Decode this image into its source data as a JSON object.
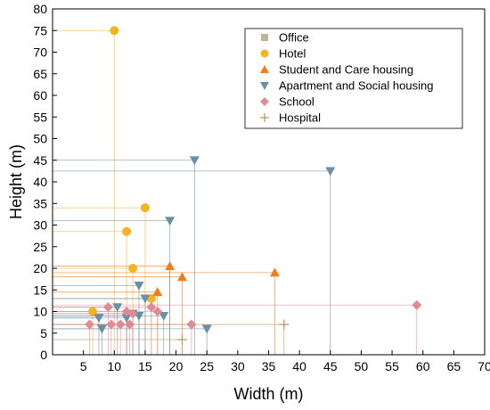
{
  "chart_data": {
    "type": "scatter",
    "title": "",
    "xlabel": "Width (m)",
    "ylabel": "Height (m)",
    "xlim": [
      0,
      70
    ],
    "ylim": [
      0,
      80
    ],
    "xticks": [
      5,
      10,
      15,
      20,
      25,
      30,
      35,
      40,
      45,
      50,
      55,
      60,
      65,
      70
    ],
    "yticks": [
      0,
      5,
      10,
      15,
      20,
      25,
      30,
      35,
      40,
      45,
      50,
      55,
      60,
      65,
      70,
      75,
      80
    ],
    "grid": false,
    "legend_position": "top-right",
    "drop_lines": true,
    "series": [
      {
        "name": "Office",
        "marker": "square",
        "color": "#bfb48f",
        "points": []
      },
      {
        "name": "Hotel",
        "marker": "circle",
        "color": "#f5b324",
        "points": [
          [
            10,
            75
          ],
          [
            15,
            34
          ],
          [
            12,
            28.5
          ],
          [
            13,
            20
          ],
          [
            6.5,
            10
          ],
          [
            16,
            13
          ]
        ]
      },
      {
        "name": "Student and Care housing",
        "marker": "triangle-up",
        "color": "#f07d1c",
        "points": [
          [
            19,
            20.5
          ],
          [
            36,
            19
          ],
          [
            21,
            18
          ],
          [
            17,
            14.5
          ]
        ]
      },
      {
        "name": "Apartment and Social housing",
        "marker": "triangle-down",
        "color": "#6a90a8",
        "points": [
          [
            23,
            45
          ],
          [
            45,
            42.5
          ],
          [
            19,
            31
          ],
          [
            14,
            16
          ],
          [
            15,
            13
          ],
          [
            10.5,
            11
          ],
          [
            13,
            9.5
          ],
          [
            14,
            9
          ],
          [
            18,
            9
          ],
          [
            12,
            8.5
          ],
          [
            7.5,
            8.5
          ],
          [
            8,
            6
          ],
          [
            25,
            6
          ]
        ]
      },
      {
        "name": "School",
        "marker": "diamond",
        "color": "#e08a93",
        "points": [
          [
            59,
            11.5
          ],
          [
            9,
            11
          ],
          [
            12,
            10
          ],
          [
            16,
            11
          ],
          [
            17,
            10
          ],
          [
            13,
            9.5
          ],
          [
            22.5,
            7
          ],
          [
            6,
            7
          ],
          [
            9.5,
            7
          ],
          [
            11,
            7
          ],
          [
            12.5,
            7
          ]
        ]
      },
      {
        "name": "Hospital",
        "marker": "plus",
        "color": "#b8915a",
        "points": [
          [
            37.5,
            7
          ],
          [
            21,
            3.5
          ]
        ]
      }
    ]
  }
}
